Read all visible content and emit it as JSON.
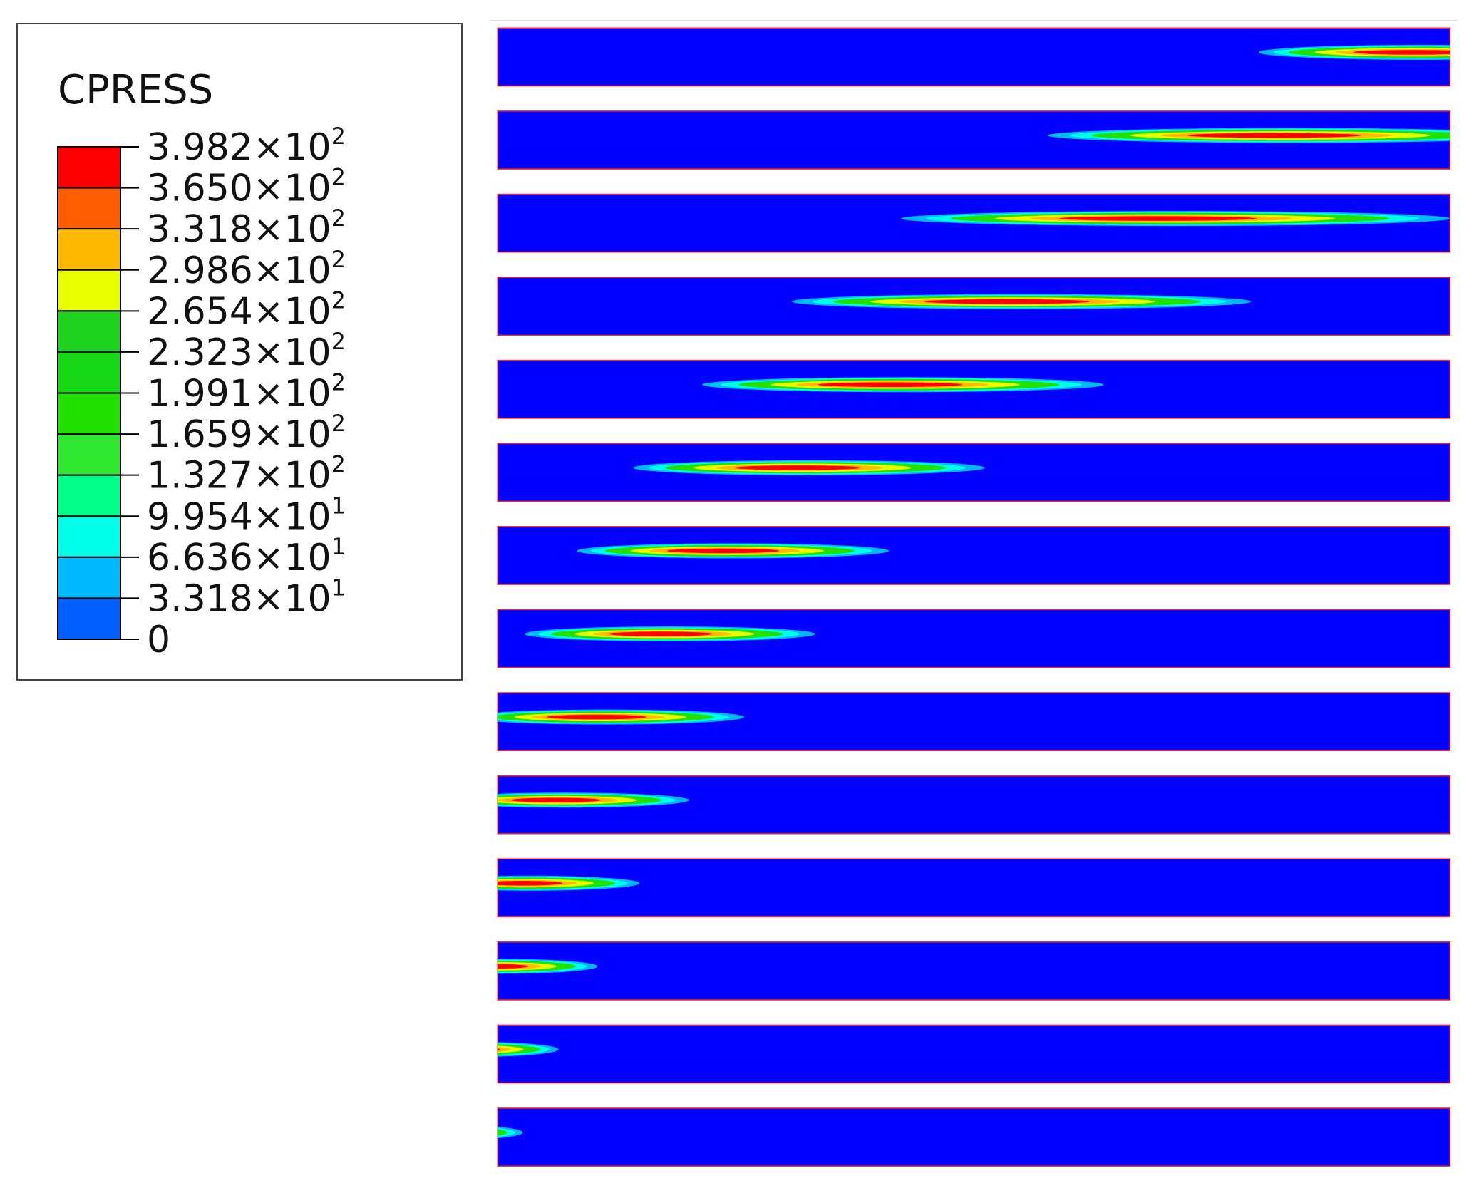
{
  "legend": {
    "title": "CPRESS",
    "labels": [
      {
        "base": "3.982×10",
        "exponent": "2"
      },
      {
        "base": "3.650×10",
        "exponent": "2"
      },
      {
        "base": "3.318×10",
        "exponent": "2"
      },
      {
        "base": "2.986×10",
        "exponent": "2"
      },
      {
        "base": "2.654×10",
        "exponent": "2"
      },
      {
        "base": "2.323×10",
        "exponent": "2"
      },
      {
        "base": "1.991×10",
        "exponent": "2"
      },
      {
        "base": "1.659×10",
        "exponent": "2"
      },
      {
        "base": "1.327×10",
        "exponent": "2"
      },
      {
        "base": "9.954×10",
        "exponent": "1"
      },
      {
        "base": "6.636×10",
        "exponent": "1"
      },
      {
        "base": "3.318×10",
        "exponent": "1"
      },
      {
        "base": "0"
      }
    ],
    "colors": [
      "#ff0000",
      "#ff5d00",
      "#ffb900",
      "#e8ff00",
      "#1ed21e",
      "#17d817",
      "#22e000",
      "#30e830",
      "#00ff8b",
      "#00ffe8",
      "#00b9ff",
      "#005dff",
      "#0000ff"
    ]
  }
}
